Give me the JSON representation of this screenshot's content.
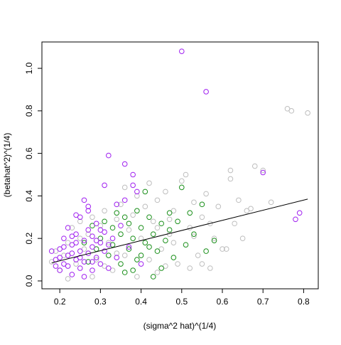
{
  "chart_data": {
    "type": "scatter",
    "xlabel": "(sigma^2 hat)^(1/4)",
    "ylabel": "(betahat^2)^(1/4)",
    "xlim": [
      0.156,
      0.836
    ],
    "ylim": [
      -0.037,
      1.124
    ],
    "xticks": [
      0.2,
      0.3,
      0.4,
      0.5,
      0.6,
      0.7,
      0.8
    ],
    "yticks": [
      {
        "value": 0,
        "label": "0.0"
      },
      0.2,
      0.4,
      0.6,
      0.8,
      {
        "value": 1,
        "label": "1.0"
      }
    ],
    "series": [
      {
        "color": "#bebebe",
        "x": [
          0.2,
          0.21,
          0.22,
          0.23,
          0.24,
          0.25,
          0.26,
          0.27,
          0.28,
          0.29,
          0.3,
          0.31,
          0.32,
          0.33,
          0.34,
          0.35,
          0.36,
          0.37,
          0.38,
          0.39,
          0.4,
          0.41,
          0.42,
          0.43,
          0.44,
          0.45,
          0.46,
          0.47,
          0.48,
          0.49,
          0.5,
          0.51,
          0.52,
          0.53,
          0.54,
          0.55,
          0.56,
          0.57,
          0.58,
          0.59,
          0.6,
          0.61,
          0.62,
          0.62,
          0.63,
          0.64,
          0.65,
          0.66,
          0.67,
          0.68,
          0.7,
          0.72,
          0.76,
          0.77,
          0.81,
          0.19,
          0.18,
          0.44,
          0.46,
          0.52,
          0.55,
          0.48,
          0.42,
          0.39,
          0.36,
          0.47,
          0.53,
          0.57,
          0.34,
          0.31,
          0.28,
          0.25,
          0.22,
          0.44
        ],
        "values": [
          0.05,
          0.12,
          0.18,
          0.25,
          0.08,
          0.28,
          0.15,
          0.22,
          0.3,
          0.1,
          0.26,
          0.33,
          0.18,
          0.05,
          0.29,
          0.36,
          0.12,
          0.24,
          0.31,
          0.02,
          0.2,
          0.35,
          0.1,
          0.28,
          0.38,
          0.15,
          0.42,
          0.22,
          0.33,
          0.08,
          0.47,
          0.5,
          0.25,
          0.37,
          0.12,
          0.3,
          0.41,
          0.06,
          0.2,
          0.35,
          0.15,
          0.15,
          0.52,
          0.48,
          0.27,
          0.38,
          0.2,
          0.33,
          0.34,
          0.54,
          0.52,
          0.37,
          0.81,
          0.8,
          0.79,
          0.14,
          0.09,
          0.04,
          0.07,
          0.06,
          0.08,
          0.18,
          0.46,
          0.4,
          0.44,
          0.29,
          0.21,
          0.27,
          0.13,
          0.07,
          0.02,
          0.2,
          0.01,
          0.25
        ]
      },
      {
        "color": "#1a8f1a",
        "x": [
          0.3,
          0.31,
          0.32,
          0.33,
          0.34,
          0.35,
          0.35,
          0.36,
          0.37,
          0.37,
          0.38,
          0.38,
          0.39,
          0.4,
          0.4,
          0.41,
          0.41,
          0.42,
          0.43,
          0.43,
          0.44,
          0.45,
          0.46,
          0.47,
          0.48,
          0.49,
          0.5,
          0.51,
          0.52,
          0.53,
          0.55,
          0.56,
          0.58,
          0.29,
          0.28,
          0.27,
          0.33,
          0.36,
          0.39,
          0.42,
          0.45,
          0.47,
          0.26
        ],
        "values": [
          0.2,
          0.28,
          0.12,
          0.25,
          0.32,
          0.08,
          0.22,
          0.3,
          0.15,
          0.27,
          0.05,
          0.2,
          0.33,
          0.12,
          0.25,
          0.42,
          0.18,
          0.3,
          0.02,
          0.22,
          0.14,
          0.27,
          0.19,
          0.24,
          0.11,
          0.28,
          0.44,
          0.17,
          0.32,
          0.22,
          0.36,
          0.14,
          0.19,
          0.15,
          0.26,
          0.09,
          0.17,
          0.04,
          0.1,
          0.16,
          0.06,
          0.32,
          0.18
        ]
      },
      {
        "color": "#a020f0",
        "x": [
          0.18,
          0.19,
          0.2,
          0.2,
          0.21,
          0.21,
          0.22,
          0.22,
          0.23,
          0.23,
          0.24,
          0.24,
          0.25,
          0.25,
          0.25,
          0.26,
          0.26,
          0.27,
          0.27,
          0.27,
          0.28,
          0.28,
          0.28,
          0.29,
          0.29,
          0.3,
          0.3,
          0.31,
          0.31,
          0.32,
          0.32,
          0.33,
          0.34,
          0.35,
          0.36,
          0.37,
          0.38,
          0.39,
          0.4,
          0.26,
          0.27,
          0.24,
          0.23,
          0.22,
          0.21,
          0.2,
          0.19,
          0.26,
          0.29,
          0.3,
          0.31,
          0.32,
          0.36,
          0.38,
          0.5,
          0.56,
          0.7,
          0.78,
          0.79,
          0.24,
          0.25,
          0.28,
          0.23,
          0.34
        ],
        "values": [
          0.14,
          0.1,
          0.05,
          0.15,
          0.2,
          0.08,
          0.12,
          0.25,
          0.03,
          0.17,
          0.1,
          0.22,
          0.06,
          0.14,
          0.3,
          0.19,
          0.09,
          0.13,
          0.24,
          0.35,
          0.05,
          0.16,
          0.21,
          0.11,
          0.27,
          0.08,
          0.18,
          0.14,
          0.23,
          0.06,
          0.17,
          0.2,
          0.11,
          0.26,
          0.38,
          0.16,
          0.45,
          0.42,
          0.08,
          0.38,
          0.33,
          0.31,
          0.13,
          0.07,
          0.16,
          0.11,
          0.07,
          0.02,
          0.19,
          0.24,
          0.45,
          0.59,
          0.55,
          0.5,
          1.08,
          0.89,
          0.51,
          0.29,
          0.32,
          0.18,
          0.11,
          0.09,
          0.21,
          0.36
        ]
      }
    ],
    "fit_line": {
      "color": "#000000",
      "x": [
        0.18,
        0.81
      ],
      "values": [
        0.085,
        0.385
      ]
    }
  }
}
